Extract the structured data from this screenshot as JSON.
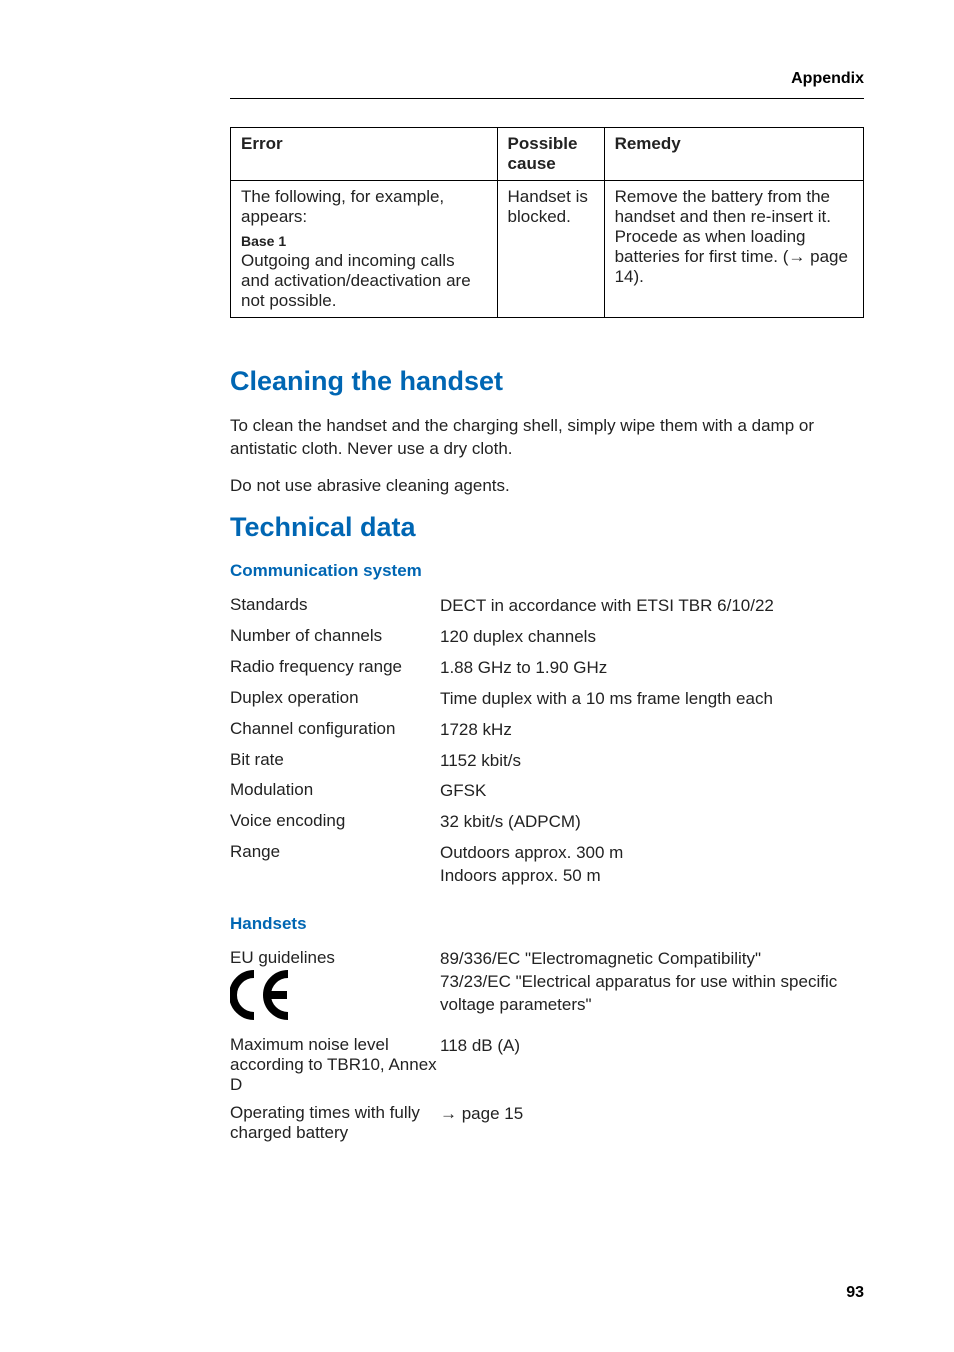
{
  "header": {
    "label": "Appendix"
  },
  "error_table": {
    "columns": [
      "Error",
      "Possible cause",
      "Remedy"
    ],
    "row": {
      "error_intro": "The following, for example, appears:",
      "error_base": "Base 1",
      "error_detail": "Outgoing and incoming calls and activation/deactivation are not possible.",
      "cause": "Handset is blocked.",
      "remedy_a": "Remove the battery from the handset and then re-insert it. Procede as when loading batteries for first time. (",
      "remedy_arrow": "→",
      "remedy_b": " page 14)."
    }
  },
  "cleaning": {
    "title": "Cleaning the handset",
    "p1": "To clean the handset and the charging shell, simply wipe them with a damp or antistatic cloth. Never use a dry cloth.",
    "p2": "Do not use abrasive cleaning agents."
  },
  "technical": {
    "title": "Technical data",
    "comm": {
      "subtitle": "Communication system",
      "rows": [
        {
          "label": "Standards",
          "value": "DECT in accordance with ETSI TBR 6/10/22"
        },
        {
          "label": "Number of channels",
          "value": "120 duplex channels"
        },
        {
          "label": "Radio frequency range",
          "value": "1.88 GHz to 1.90 GHz"
        },
        {
          "label": "Duplex operation",
          "value": "Time duplex with a 10 ms frame length each"
        },
        {
          "label": "Channel configuration",
          "value": "1728 kHz"
        },
        {
          "label": "Bit rate",
          "value": "1152 kbit/s"
        },
        {
          "label": "Modulation",
          "value": "GFSK"
        },
        {
          "label": "Voice encoding",
          "value": "32 kbit/s (ADPCM)"
        },
        {
          "label": "Range",
          "value": "Outdoors approx. 300 m\nIndoors approx. 50 m"
        }
      ]
    },
    "handsets": {
      "subtitle": "Handsets",
      "eu_label": "EU guidelines",
      "eu_val1": "89/336/EC \"Electromagnetic Compatibility\"",
      "eu_val2": "73/23/EC \"Electrical apparatus for use within specific voltage parameters\"",
      "noise_label": "Maximum noise level according to TBR10, Annex D",
      "noise_value": "118 dB (A)",
      "optime_label": "Operating times with fully charged battery",
      "optime_arrow": "→",
      "optime_value": " page 15"
    }
  },
  "page_number": "93",
  "colors": {
    "heading": "#0066b3",
    "text": "#222222",
    "border": "#000000"
  }
}
